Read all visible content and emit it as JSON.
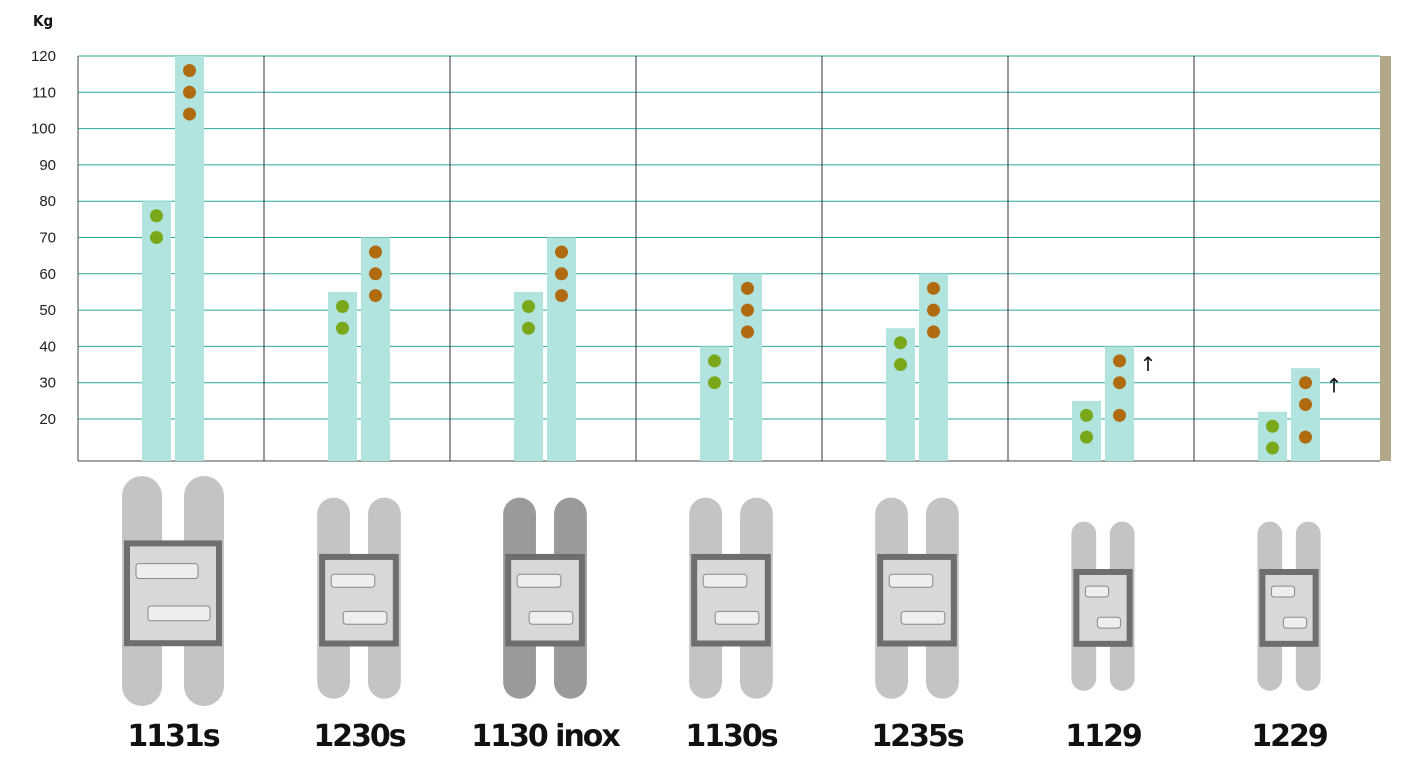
{
  "chart_data": {
    "type": "bar",
    "ylabel": "Kg",
    "ylim": [
      10,
      120
    ],
    "yticks": [
      20,
      30,
      40,
      50,
      60,
      70,
      80,
      90,
      100,
      110,
      120
    ],
    "grid": true,
    "categories": [
      "1131s",
      "1230s",
      "1130 inox",
      "1130s",
      "1235s",
      "1129",
      "1229"
    ],
    "series": [
      {
        "values": [
          80,
          55,
          55,
          40,
          45,
          25,
          22
        ]
      },
      {
        "values": [
          120,
          70,
          70,
          60,
          60,
          40,
          34
        ]
      }
    ],
    "markers": {
      "series_1_green": [
        [
          76,
          70
        ],
        [
          51,
          45
        ],
        [
          51,
          45
        ],
        [
          36,
          30
        ],
        [
          41,
          35
        ],
        [
          21,
          15
        ],
        [
          18,
          12
        ]
      ],
      "series_2_brown": [
        [
          116,
          110,
          104
        ],
        [
          66,
          60,
          54
        ],
        [
          66,
          60,
          54
        ],
        [
          56,
          50,
          44
        ],
        [
          56,
          50,
          44
        ],
        [
          36,
          30,
          21
        ],
        [
          30,
          24,
          15
        ]
      ]
    },
    "arrow_symbol": "↑",
    "arrows_on": [
      "1129",
      "1229"
    ],
    "colors": {
      "bar": "#b1e3df",
      "gridline": "#2aa79b",
      "green_marker": "#7aa81a",
      "brown_marker": "#b06b10",
      "right_band": "#b3a789"
    }
  }
}
